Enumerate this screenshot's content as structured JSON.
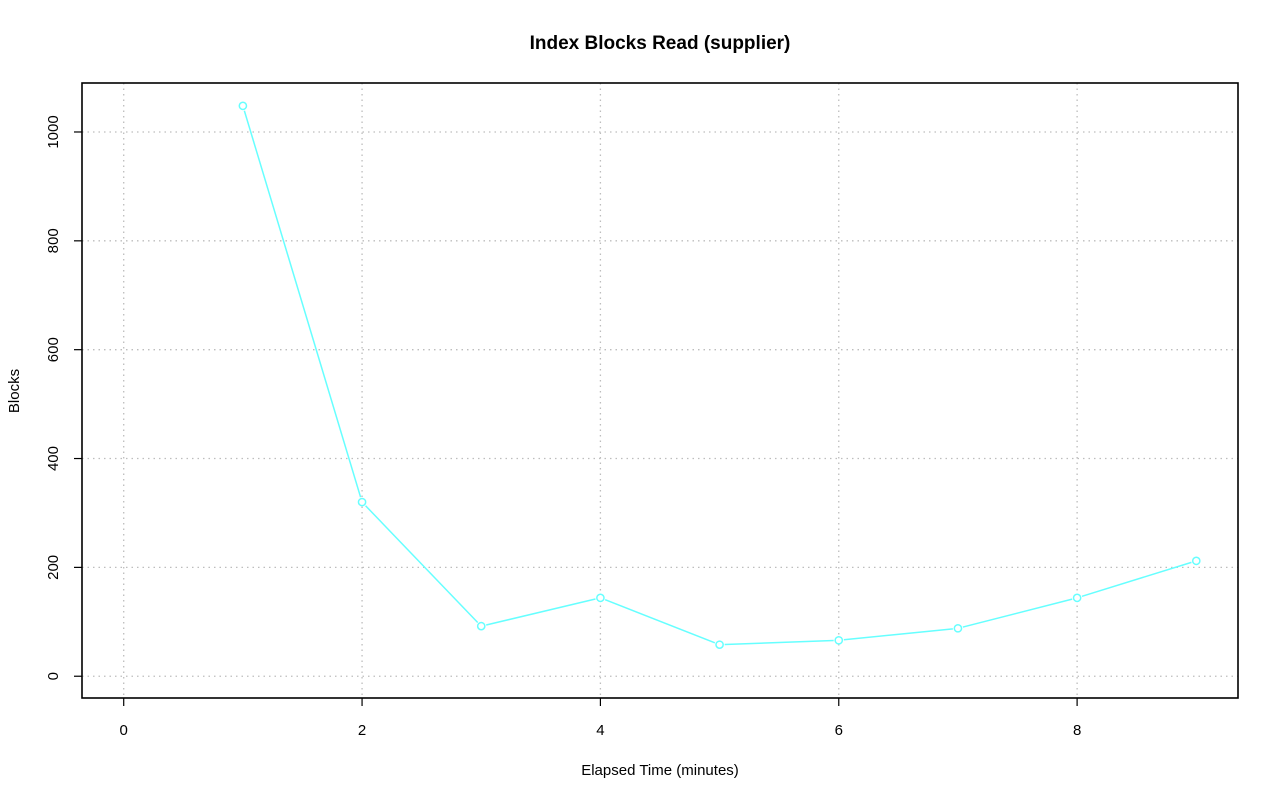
{
  "chart_data": {
    "type": "line",
    "title": "Index Blocks Read (supplier)",
    "xlabel": "Elapsed Time (minutes)",
    "ylabel": "Blocks",
    "xlim": [
      -0.35,
      9.35
    ],
    "ylim": [
      -40,
      1090
    ],
    "x_ticks": [
      0,
      2,
      4,
      6,
      8
    ],
    "x_tick_labels": [
      "0",
      "2",
      "4",
      "6",
      "8"
    ],
    "y_ticks": [
      0,
      200,
      400,
      600,
      800,
      1000
    ],
    "y_tick_labels": [
      "0",
      "200",
      "400",
      "600",
      "800",
      "1000"
    ],
    "grid": true,
    "legend": "none",
    "colors": {
      "series": "#66ffff",
      "grid": "#bdbdbd",
      "frame": "#000000"
    },
    "series": [
      {
        "x": [
          1,
          2,
          3,
          4,
          5,
          6,
          7,
          8,
          9
        ],
        "values": [
          1048,
          320,
          92,
          144,
          58,
          66,
          88,
          144,
          212
        ]
      }
    ]
  }
}
